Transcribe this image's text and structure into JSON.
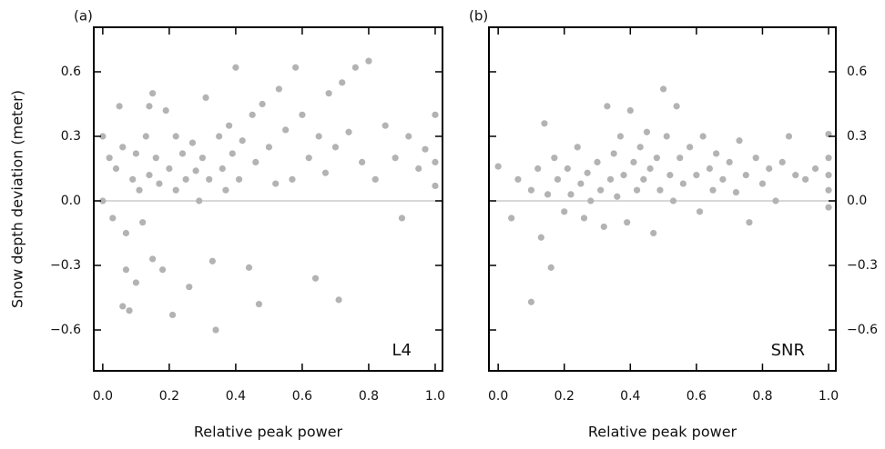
{
  "chart_data": [
    {
      "type": "scatter",
      "panel_label": "(a)",
      "annotation": "L4",
      "xlabel": "Relative peak power",
      "ylabel": "Snow depth deviation (meter)",
      "y_axis_side": "left",
      "color": "#b3b3b3",
      "reference_line": 0,
      "xlim": [
        -0.027,
        1.022
      ],
      "ylim": [
        -0.79,
        0.807
      ],
      "xticks": [
        {
          "value": 0,
          "label": "0.0"
        },
        0.2,
        0.4,
        0.6,
        0.8,
        {
          "value": 1,
          "label": "1.0"
        }
      ],
      "yticks": [
        {
          "value": -0.6,
          "label": "−0.6"
        },
        {
          "value": -0.3,
          "label": "−0.3"
        },
        {
          "value": 0,
          "label": "0.0"
        },
        0.3,
        0.6
      ],
      "x": [
        0,
        0,
        0.02,
        0.03,
        0.04,
        0.05,
        0.06,
        0.06,
        0.07,
        0.07,
        0.08,
        0.09,
        0.1,
        0.1,
        0.11,
        0.12,
        0.13,
        0.14,
        0.14,
        0.15,
        0.15,
        0.16,
        0.17,
        0.18,
        0.19,
        0.2,
        0.21,
        0.22,
        0.22,
        0.24,
        0.25,
        0.26,
        0.27,
        0.28,
        0.29,
        0.3,
        0.31,
        0.32,
        0.33,
        0.34,
        0.35,
        0.36,
        0.37,
        0.38,
        0.39,
        0.4,
        0.41,
        0.42,
        0.44,
        0.45,
        0.46,
        0.47,
        0.48,
        0.5,
        0.52,
        0.53,
        0.55,
        0.57,
        0.58,
        0.6,
        0.62,
        0.64,
        0.65,
        0.67,
        0.68,
        0.7,
        0.71,
        0.72,
        0.74,
        0.76,
        0.78,
        0.8,
        0.82,
        0.85,
        0.88,
        0.9,
        0.92,
        0.95,
        0.97,
        1,
        1,
        1
      ],
      "y": [
        0.3,
        0,
        0.2,
        -0.08,
        0.15,
        0.44,
        0.25,
        -0.49,
        -0.32,
        -0.15,
        -0.51,
        0.1,
        0.22,
        -0.38,
        0.05,
        -0.1,
        0.3,
        0.44,
        0.12,
        0.5,
        -0.27,
        0.2,
        0.08,
        -0.32,
        0.42,
        0.15,
        -0.53,
        0.3,
        0.05,
        0.22,
        0.1,
        -0.4,
        0.27,
        0.14,
        0,
        0.2,
        0.48,
        0.1,
        -0.28,
        -0.6,
        0.3,
        0.15,
        0.05,
        0.35,
        0.22,
        0.62,
        0.1,
        0.28,
        -0.31,
        0.4,
        0.18,
        -0.48,
        0.45,
        0.25,
        0.08,
        0.52,
        0.33,
        0.1,
        0.62,
        0.4,
        0.2,
        -0.36,
        0.3,
        0.13,
        0.5,
        0.25,
        -0.46,
        0.55,
        0.32,
        0.62,
        0.18,
        0.65,
        0.1,
        0.35,
        0.2,
        -0.08,
        0.3,
        0.15,
        0.24,
        0.4,
        0.07,
        0.18
      ]
    },
    {
      "type": "scatter",
      "panel_label": "(b)",
      "annotation": "SNR",
      "xlabel": "Relative peak power",
      "y_axis_side": "right",
      "color": "#b3b3b3",
      "reference_line": 0,
      "xlim": [
        -0.028,
        1.022
      ],
      "ylim": [
        -0.79,
        0.807
      ],
      "xticks": [
        {
          "value": 0,
          "label": "0.0"
        },
        0.2,
        0.4,
        0.6,
        0.8,
        {
          "value": 1,
          "label": "1.0"
        }
      ],
      "yticks": [
        {
          "value": -0.6,
          "label": "−0.6"
        },
        {
          "value": -0.3,
          "label": "−0.3"
        },
        {
          "value": 0,
          "label": "0.0"
        },
        0.3,
        0.6
      ],
      "x": [
        0,
        0.04,
        0.06,
        0.1,
        0.1,
        0.12,
        0.13,
        0.14,
        0.15,
        0.16,
        0.17,
        0.18,
        0.2,
        0.21,
        0.22,
        0.24,
        0.25,
        0.26,
        0.27,
        0.28,
        0.3,
        0.31,
        0.32,
        0.33,
        0.34,
        0.35,
        0.36,
        0.37,
        0.38,
        0.39,
        0.4,
        0.41,
        0.42,
        0.43,
        0.44,
        0.45,
        0.46,
        0.47,
        0.48,
        0.49,
        0.5,
        0.51,
        0.52,
        0.53,
        0.54,
        0.55,
        0.56,
        0.58,
        0.6,
        0.61,
        0.62,
        0.64,
        0.65,
        0.66,
        0.68,
        0.7,
        0.72,
        0.73,
        0.75,
        0.76,
        0.78,
        0.8,
        0.82,
        0.84,
        0.86,
        0.88,
        0.9,
        0.93,
        0.96,
        1,
        1,
        1,
        1,
        1
      ],
      "y": [
        0.16,
        -0.08,
        0.1,
        -0.47,
        0.05,
        0.15,
        -0.17,
        0.36,
        0.03,
        -0.31,
        0.2,
        0.1,
        -0.05,
        0.15,
        0.03,
        0.25,
        0.08,
        -0.08,
        0.13,
        0,
        0.18,
        0.05,
        -0.12,
        0.44,
        0.1,
        0.22,
        0.02,
        0.3,
        0.12,
        -0.1,
        0.42,
        0.18,
        0.05,
        0.25,
        0.1,
        0.32,
        0.15,
        -0.15,
        0.2,
        0.05,
        0.52,
        0.3,
        0.12,
        0,
        0.44,
        0.2,
        0.08,
        0.25,
        0.12,
        -0.05,
        0.3,
        0.15,
        0.05,
        0.22,
        0.1,
        0.18,
        0.04,
        0.28,
        0.12,
        -0.1,
        0.2,
        0.08,
        0.15,
        0,
        0.18,
        0.3,
        0.12,
        0.1,
        0.15,
        0.31,
        0.2,
        0.05,
        -0.03,
        0.12
      ]
    }
  ]
}
